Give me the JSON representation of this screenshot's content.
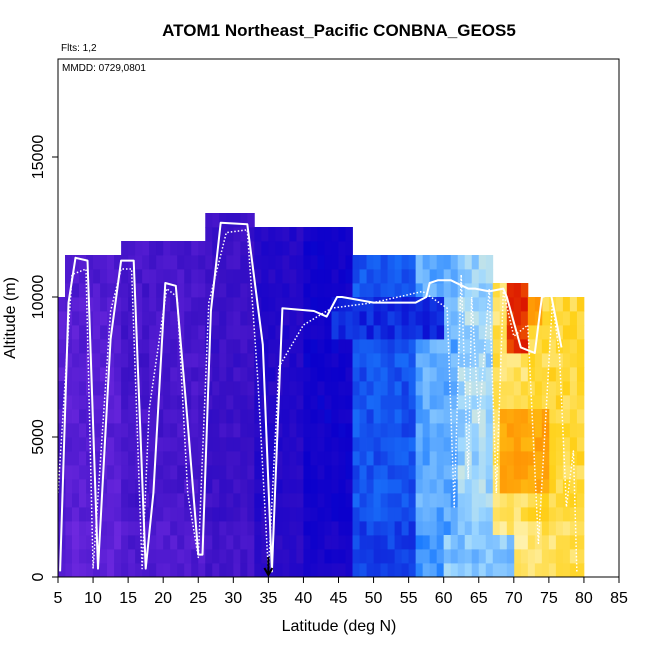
{
  "chart_data": {
    "type": "heatmap",
    "title": "ATOM1 Northeast_Pacific CONBNA_GEOS5",
    "annotations": [
      "Flts: 1,2",
      "MMDD: 0729,0801"
    ],
    "xlabel": "Latitude (deg N)",
    "ylabel": "Altitude (m)",
    "xlim": [
      5,
      85
    ],
    "ylim": [
      0,
      18500
    ],
    "xticks": [
      5,
      10,
      15,
      20,
      25,
      30,
      35,
      40,
      45,
      50,
      55,
      60,
      65,
      70,
      75,
      80,
      85
    ],
    "yticks": [
      0,
      5000,
      10000,
      15000
    ],
    "marker_latitude": 35,
    "cell_size": {
      "lat": 1,
      "alt": 500
    },
    "zones": [
      {
        "lat": [
          5,
          14
        ],
        "alt": [
          0,
          10000
        ],
        "value": 0.08
      },
      {
        "lat": [
          5,
          6
        ],
        "alt": [
          0,
          7000
        ],
        "value": 0.1
      },
      {
        "lat": [
          6,
          14
        ],
        "alt": [
          10000,
          11500
        ],
        "value": 0.1
      },
      {
        "lat": [
          14,
          26
        ],
        "alt": [
          0,
          12000
        ],
        "value": 0.12
      },
      {
        "lat": [
          26,
          33
        ],
        "alt": [
          0,
          13000
        ],
        "value": 0.15
      },
      {
        "lat": [
          33,
          40
        ],
        "alt": [
          0,
          12500
        ],
        "value": 0.22
      },
      {
        "lat": [
          40,
          47
        ],
        "alt": [
          0,
          12500
        ],
        "value": 0.28
      },
      {
        "lat": [
          47,
          56
        ],
        "alt": [
          0,
          11500
        ],
        "value": 0.4
      },
      {
        "lat": [
          56,
          62
        ],
        "alt": [
          0,
          11500
        ],
        "value": 0.5
      },
      {
        "lat": [
          62,
          67
        ],
        "alt": [
          0,
          11500
        ],
        "value": 0.55
      },
      {
        "lat": [
          67,
          72
        ],
        "alt": [
          0,
          10500
        ],
        "value": 0.68
      },
      {
        "lat": [
          72,
          80
        ],
        "alt": [
          0,
          10000
        ],
        "value": 0.7
      },
      {
        "lat": [
          69,
          72
        ],
        "alt": [
          8000,
          10500
        ],
        "value": 0.95
      },
      {
        "lat": [
          72,
          74
        ],
        "alt": [
          9000,
          10000
        ],
        "value": 0.82
      },
      {
        "lat": [
          68,
          75
        ],
        "alt": [
          3000,
          6000
        ],
        "value": 0.8
      },
      {
        "lat": [
          60,
          70
        ],
        "alt": [
          0,
          1500
        ],
        "value": 0.55
      },
      {
        "lat": [
          44,
          60
        ],
        "alt": [
          8500,
          10000
        ],
        "value": 0.35
      }
    ],
    "colorscale": {
      "stops": [
        0,
        0.15,
        0.3,
        0.45,
        0.55,
        0.62,
        0.72,
        0.85,
        1
      ],
      "colors": [
        "#7a2ee6",
        "#3a10c4",
        "#0a00cc",
        "#1a7bff",
        "#9fd8ff",
        "#fff6c2",
        "#ffd21a",
        "#ff8a00",
        "#d40000"
      ]
    },
    "series": [
      {
        "style": "solid",
        "color": "#ffffff",
        "x": [
          5.3,
          6.5,
          7.5,
          9.2,
          10.7,
          12.5,
          14.0,
          15.8,
          17.5,
          18.6,
          20.3,
          21.8,
          23.5,
          25.0,
          25.6,
          26.8,
          28.2,
          32.0,
          34.2,
          35.5,
          37.0,
          41.5,
          43.3,
          44.8,
          45.5,
          50.0,
          56.0,
          57.5,
          58.0,
          59.2,
          61.0,
          63.5,
          64.5,
          66.5,
          68.5,
          69.0,
          71.0,
          73.0,
          74.0,
          75.3,
          76.8
        ],
        "y": [
          200,
          9800,
          11400,
          11300,
          300,
          8500,
          11300,
          11300,
          300,
          3000,
          10500,
          10400,
          5500,
          800,
          800,
          9500,
          12650,
          12600,
          8300,
          200,
          9600,
          9500,
          9300,
          10000,
          10000,
          9800,
          9800,
          10000,
          10500,
          10600,
          10600,
          10300,
          10300,
          10200,
          10300,
          10000,
          8200,
          8000,
          10000,
          10100,
          8200
        ]
      },
      {
        "style": "dotted",
        "color": "#ffffff",
        "x": [
          5.0,
          7.0,
          9.0,
          10.0,
          12.5,
          14.0,
          15.5,
          17.0,
          18.0,
          20.5,
          22.0,
          23.5,
          25.0,
          26.5,
          29.0,
          32.0,
          33.5,
          35.0,
          36.5,
          40.0,
          44.0,
          50.0,
          57.0,
          60.5,
          61.5,
          62.5,
          63.5,
          64.0,
          65.0,
          66.5,
          67.5,
          68.5,
          70.0,
          72.0,
          73.5,
          75.5,
          76.5,
          77.5,
          78.5,
          79.0
        ],
        "y": [
          3000,
          10800,
          11000,
          300,
          9500,
          11000,
          11000,
          300,
          6000,
          10300,
          10000,
          3000,
          700,
          9800,
          12300,
          12400,
          7000,
          200,
          7500,
          9000,
          9600,
          9800,
          10200,
          9600,
          2500,
          10800,
          3500,
          10000,
          5500,
          10300,
          3000,
          10200,
          8600,
          9000,
          1200,
          9800,
          8000,
          2500,
          4500,
          150
        ]
      }
    ]
  }
}
